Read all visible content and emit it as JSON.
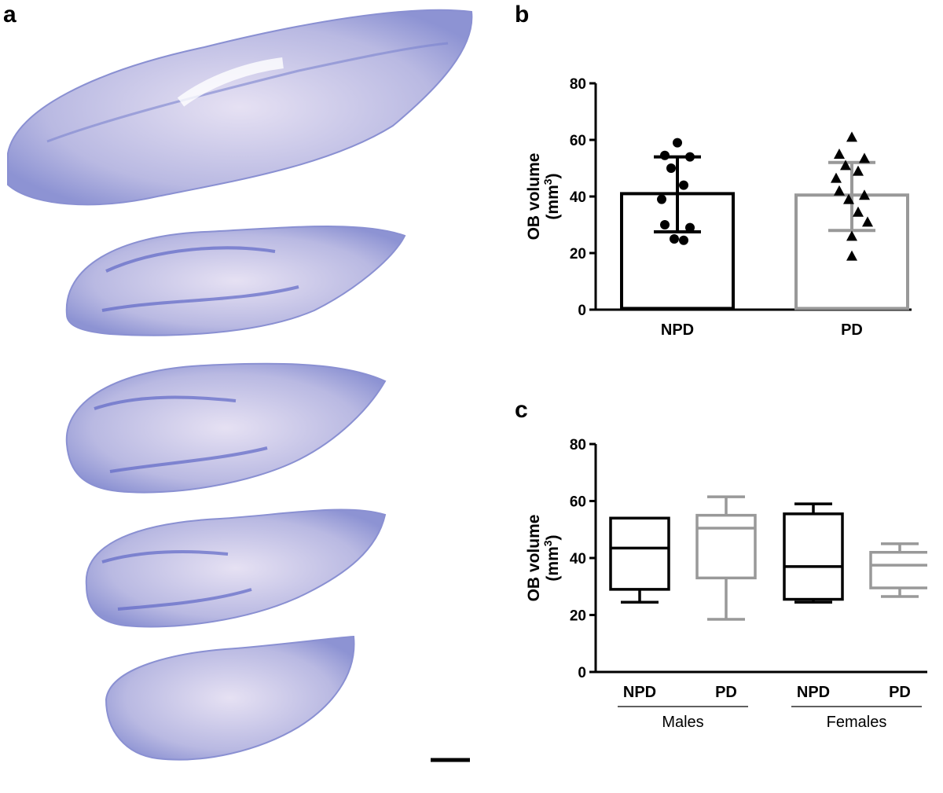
{
  "panels": {
    "a": "a",
    "b": "b",
    "c": "c"
  },
  "colors": {
    "npd": "#000000",
    "pd": "#999999",
    "tissue": "#8f95d4",
    "tissue_light": "#d8d3ee",
    "scale_bar": "#000000"
  },
  "chart_data": [
    {
      "panel": "b",
      "type": "bar",
      "ylabel": "OB volume",
      "ylabel_unit": "(mm3)",
      "ylim": [
        0,
        80
      ],
      "yticks": [
        0,
        20,
        40,
        60,
        80
      ],
      "categories": [
        "NPD",
        "PD"
      ],
      "series": [
        {
          "name": "NPD",
          "mean": 41,
          "error": [
            27.5,
            54
          ],
          "marker": "circle",
          "points": [
            59,
            54.5,
            54,
            50,
            44,
            39,
            30,
            29,
            25,
            24.5
          ]
        },
        {
          "name": "PD",
          "mean": 40.5,
          "error": [
            28,
            52
          ],
          "marker": "triangle",
          "points": [
            61,
            55,
            53.5,
            51,
            49,
            46.5,
            42,
            40.5,
            39,
            34.5,
            31,
            26,
            19
          ]
        }
      ]
    },
    {
      "panel": "c",
      "type": "box",
      "ylabel": "OB volume",
      "ylabel_unit": "(mm3)",
      "ylim": [
        0,
        80
      ],
      "yticks": [
        0,
        20,
        40,
        60,
        80
      ],
      "categories": [
        "NPD",
        "PD",
        "NPD",
        "PD"
      ],
      "groups": [
        {
          "label": "Males",
          "span": [
            0,
            1
          ]
        },
        {
          "label": "Females",
          "span": [
            2,
            3
          ]
        }
      ],
      "boxes": [
        {
          "min": 24.5,
          "q1": 29,
          "median": 43.5,
          "q3": 54,
          "max": 54
        },
        {
          "min": 18.5,
          "q1": 33,
          "median": 50.5,
          "q3": 55,
          "max": 61.5
        },
        {
          "min": 24.5,
          "q1": 25.5,
          "median": 37,
          "q3": 55.5,
          "max": 59
        },
        {
          "min": 26.5,
          "q1": 29.5,
          "median": 37.5,
          "q3": 42,
          "max": 45
        }
      ]
    }
  ]
}
